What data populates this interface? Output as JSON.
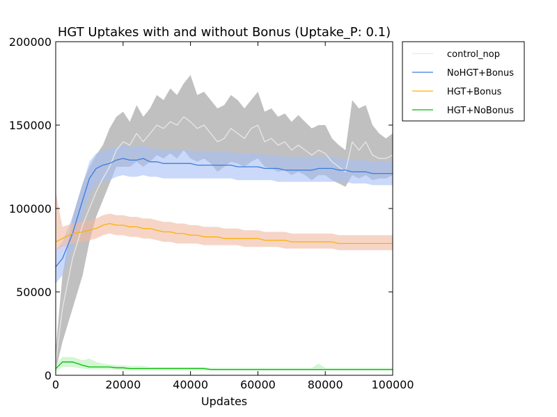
{
  "chart_data": {
    "type": "line",
    "title": "HGT Uptakes with and without Bonus (Uptake_P: 0.1)",
    "xlabel": "Updates",
    "ylabel": "",
    "xlim": [
      0,
      100000
    ],
    "ylim": [
      0,
      200000
    ],
    "x_ticks": [
      0,
      20000,
      40000,
      60000,
      80000,
      100000
    ],
    "y_ticks": [
      0,
      50000,
      100000,
      150000,
      200000
    ],
    "grid": false,
    "legend_position": "outside-top-right",
    "x": [
      0,
      2000,
      5000,
      8000,
      10000,
      12000,
      14000,
      16000,
      18000,
      20000,
      22000,
      24000,
      26000,
      28000,
      30000,
      32000,
      34000,
      36000,
      38000,
      40000,
      42000,
      44000,
      46000,
      48000,
      50000,
      52000,
      54000,
      56000,
      58000,
      60000,
      62000,
      64000,
      66000,
      68000,
      70000,
      72000,
      74000,
      76000,
      78000,
      80000,
      82000,
      84000,
      86000,
      88000,
      90000,
      92000,
      94000,
      96000,
      98000,
      100000
    ],
    "series": [
      {
        "name": "control_nop",
        "color": "#e8e8e8",
        "band_color": "#bdbdbd",
        "values": [
          8000,
          40000,
          70000,
          90000,
          100000,
          110000,
          118000,
          125000,
          135000,
          140000,
          138000,
          145000,
          140000,
          145000,
          150000,
          148000,
          152000,
          150000,
          155000,
          152000,
          148000,
          150000,
          145000,
          140000,
          142000,
          148000,
          145000,
          142000,
          148000,
          150000,
          140000,
          142000,
          138000,
          140000,
          135000,
          138000,
          135000,
          132000,
          135000,
          133000,
          128000,
          125000,
          122000,
          140000,
          135000,
          140000,
          132000,
          130000,
          130000,
          132000
        ],
        "lower": [
          3000,
          20000,
          40000,
          60000,
          80000,
          95000,
          105000,
          115000,
          125000,
          125000,
          125000,
          128000,
          125000,
          128000,
          132000,
          130000,
          133000,
          130000,
          135000,
          130000,
          128000,
          130000,
          127000,
          122000,
          125000,
          128000,
          127000,
          125000,
          128000,
          130000,
          125000,
          124000,
          122000,
          123000,
          120000,
          122000,
          120000,
          117000,
          120000,
          120000,
          117000,
          115000,
          113000,
          120000,
          118000,
          120000,
          117000,
          118000,
          118000,
          120000
        ],
        "upper": [
          15000,
          60000,
          95000,
          115000,
          125000,
          132000,
          138000,
          148000,
          155000,
          158000,
          152000,
          162000,
          155000,
          160000,
          168000,
          165000,
          172000,
          168000,
          175000,
          180000,
          168000,
          170000,
          165000,
          160000,
          162000,
          168000,
          165000,
          160000,
          165000,
          170000,
          158000,
          160000,
          155000,
          157000,
          152000,
          156000,
          152000,
          148000,
          150000,
          150000,
          142000,
          138000,
          135000,
          165000,
          160000,
          162000,
          150000,
          145000,
          142000,
          145000
        ]
      },
      {
        "name": "NoHGT+Bonus",
        "color": "#3a7be0",
        "band_color": "#a6bff5",
        "values": [
          65000,
          70000,
          85000,
          105000,
          118000,
          124000,
          126000,
          127000,
          129000,
          130000,
          129000,
          129000,
          130000,
          128000,
          128000,
          127000,
          127000,
          127000,
          127000,
          127000,
          126000,
          126000,
          126000,
          126000,
          126000,
          126000,
          125000,
          125000,
          125000,
          125000,
          124000,
          124000,
          124000,
          123000,
          123000,
          123000,
          123000,
          123000,
          124000,
          124000,
          124000,
          123000,
          123000,
          122000,
          122000,
          122000,
          121000,
          121000,
          121000,
          121000
        ],
        "lower": [
          55000,
          60000,
          75000,
          95000,
          108000,
          114000,
          116000,
          117000,
          119000,
          120000,
          119000,
          119000,
          120000,
          119000,
          119000,
          118000,
          118000,
          118000,
          118000,
          118000,
          118000,
          118000,
          118000,
          118000,
          118000,
          118000,
          117000,
          117000,
          117000,
          117000,
          117000,
          117000,
          116000,
          116000,
          116000,
          116000,
          116000,
          116000,
          116000,
          116000,
          116000,
          116000,
          116000,
          115000,
          115000,
          115000,
          114000,
          114000,
          114000,
          114000
        ],
        "upper": [
          75000,
          80000,
          95000,
          115000,
          128000,
          133000,
          135000,
          136000,
          137000,
          138000,
          137000,
          137000,
          138000,
          136000,
          136000,
          135000,
          135000,
          135000,
          135000,
          135000,
          134000,
          134000,
          134000,
          134000,
          134000,
          134000,
          133000,
          133000,
          133000,
          133000,
          132000,
          132000,
          132000,
          131000,
          131000,
          131000,
          131000,
          131000,
          131000,
          131000,
          131000,
          130000,
          130000,
          129000,
          129000,
          129000,
          128000,
          128000,
          128000,
          128000
        ]
      },
      {
        "name": "HGT+Bonus",
        "color": "#ffb000",
        "band_color": "#f0b9a0",
        "values": [
          80000,
          82000,
          85000,
          86000,
          87000,
          88000,
          90000,
          91000,
          90000,
          90000,
          89000,
          89000,
          88000,
          88000,
          87000,
          86000,
          86000,
          85000,
          85000,
          84000,
          84000,
          83000,
          83000,
          83000,
          82000,
          82000,
          82000,
          82000,
          82000,
          82000,
          81000,
          81000,
          81000,
          81000,
          80000,
          80000,
          80000,
          80000,
          80000,
          80000,
          80000,
          79000,
          79000,
          79000,
          79000,
          79000,
          79000,
          79000,
          79000,
          79000
        ],
        "lower": [
          75000,
          77000,
          79000,
          80000,
          81000,
          82000,
          84000,
          85000,
          84000,
          84000,
          83000,
          83000,
          82000,
          82000,
          81000,
          80000,
          80000,
          79000,
          79000,
          79000,
          79000,
          78000,
          78000,
          78000,
          78000,
          78000,
          78000,
          77000,
          77000,
          77000,
          77000,
          77000,
          77000,
          76000,
          76000,
          76000,
          76000,
          76000,
          76000,
          76000,
          76000,
          75000,
          75000,
          75000,
          75000,
          75000,
          75000,
          75000,
          75000,
          75000
        ],
        "upper": [
          110000,
          89000,
          91000,
          92000,
          93000,
          94000,
          96000,
          97000,
          96000,
          96000,
          95000,
          95000,
          94000,
          94000,
          93000,
          92000,
          92000,
          91000,
          91000,
          90000,
          90000,
          89000,
          89000,
          89000,
          88000,
          88000,
          88000,
          87000,
          87000,
          87000,
          86000,
          86000,
          86000,
          86000,
          85000,
          85000,
          85000,
          85000,
          85000,
          85000,
          85000,
          84000,
          84000,
          84000,
          84000,
          84000,
          84000,
          84000,
          84000,
          84000
        ]
      },
      {
        "name": "HGT+NoBonus",
        "color": "#00bb00",
        "band_color": "#b8f0b8",
        "values": [
          4000,
          8000,
          8000,
          6000,
          5000,
          5000,
          5000,
          5000,
          4500,
          4500,
          4000,
          4000,
          4000,
          4000,
          4000,
          4000,
          4000,
          4000,
          4000,
          4000,
          4000,
          4000,
          3500,
          3500,
          3500,
          3500,
          3500,
          3500,
          3500,
          3500,
          3500,
          3500,
          3500,
          3500,
          3500,
          3500,
          3500,
          3500,
          3500,
          3500,
          3500,
          3500,
          3500,
          3500,
          3500,
          3500,
          3500,
          3500,
          3500,
          3500
        ],
        "lower": [
          2000,
          5000,
          5000,
          4000,
          3500,
          3500,
          3500,
          3500,
          3200,
          3200,
          3000,
          3000,
          3000,
          3000,
          3000,
          3000,
          3000,
          3000,
          3000,
          3000,
          3000,
          3000,
          2700,
          2700,
          2700,
          2700,
          2700,
          2700,
          2700,
          2700,
          2700,
          2700,
          2700,
          2700,
          2700,
          2700,
          2700,
          2700,
          2700,
          2700,
          2700,
          2700,
          2700,
          2700,
          2700,
          2700,
          2700,
          2700,
          2700,
          2700
        ],
        "upper": [
          7000,
          11000,
          11000,
          9000,
          10000,
          8000,
          7000,
          6500,
          6000,
          6000,
          5500,
          5500,
          5500,
          5000,
          5000,
          5000,
          5000,
          5000,
          5000,
          5000,
          5000,
          5000,
          4500,
          4500,
          4500,
          4500,
          4500,
          4500,
          4500,
          4500,
          4500,
          4500,
          4500,
          4500,
          4500,
          4500,
          4500,
          4500,
          7000,
          4500,
          4500,
          4500,
          4500,
          4500,
          4500,
          4500,
          4500,
          4500,
          4500,
          4500
        ]
      }
    ]
  }
}
